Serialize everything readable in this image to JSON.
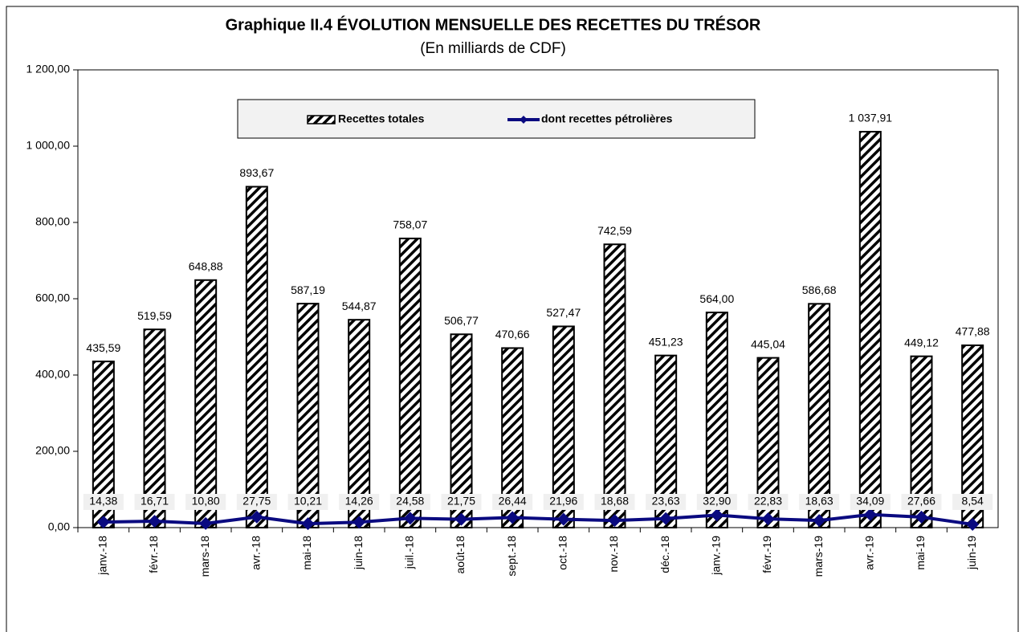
{
  "chart_data": {
    "type": "bar",
    "title": "Graphique II.4  ÉVOLUTION MENSUELLE DES RECETTES DU TRÉSOR",
    "subtitle": "(En milliards de CDF)",
    "categories": [
      "janv.-18",
      "févr.-18",
      "mars-18",
      "avr.-18",
      "mai-18",
      "juin-18",
      "juil.-18",
      "août-18",
      "sept.-18",
      "oct.-18",
      "nov.-18",
      "déc.-18",
      "janv.-19",
      "févr.-19",
      "mars-19",
      "avr.-19",
      "mai-19",
      "juin-19"
    ],
    "series": [
      {
        "name": "Recettes totales",
        "type": "bar",
        "color": "#000000",
        "values": [
          435.59,
          519.59,
          648.88,
          893.67,
          587.19,
          544.87,
          758.07,
          506.77,
          470.66,
          527.47,
          742.59,
          451.23,
          564.0,
          445.04,
          586.68,
          1037.91,
          449.12,
          477.88
        ],
        "value_labels": [
          "435,59",
          "519,59",
          "648,88",
          "893,67",
          "587,19",
          "544,87",
          "758,07",
          "506,77",
          "470,66",
          "527,47",
          "742,59",
          "451,23",
          "564,00",
          "445,04",
          "586,68",
          "1 037,91",
          "449,12",
          "477,88"
        ]
      },
      {
        "name": "dont recettes pétrolières",
        "type": "line",
        "color": "#0a0a80",
        "values": [
          14.38,
          16.71,
          10.8,
          27.75,
          10.21,
          14.26,
          24.58,
          21.75,
          26.44,
          21.96,
          18.68,
          23.63,
          32.9,
          22.83,
          18.63,
          34.09,
          27.66,
          8.54
        ],
        "value_labels": [
          "14,38",
          "16,71",
          "10,80",
          "27,75",
          "10,21",
          "14,26",
          "24,58",
          "21,75",
          "26,44",
          "21,96",
          "18,68",
          "23,63",
          "32,90",
          "22,83",
          "18,63",
          "34,09",
          "27,66",
          "8,54"
        ]
      }
    ],
    "ylim": [
      0,
      1200
    ],
    "yticks": [
      {
        "value": 0,
        "label": "0,00"
      },
      {
        "value": 200,
        "label": "200,00"
      },
      {
        "value": 400,
        "label": "400,00"
      },
      {
        "value": 600,
        "label": "600,00"
      },
      {
        "value": 800,
        "label": "800,00"
      },
      {
        "value": 1000,
        "label": "1 000,00"
      },
      {
        "value": 1200,
        "label": "1 200,00"
      }
    ],
    "legend": "top"
  }
}
